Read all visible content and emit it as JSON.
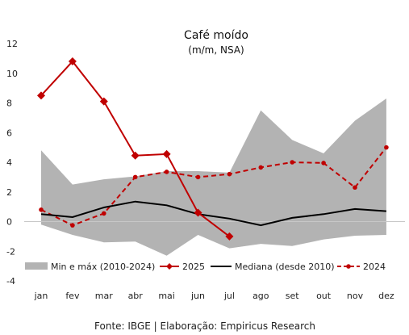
{
  "chart_data": {
    "type": "line",
    "title": "Café moído",
    "subtitle": "(m/m, NSA)",
    "categories": [
      "jan",
      "fev",
      "mar",
      "abr",
      "mai",
      "jun",
      "jul",
      "ago",
      "set",
      "out",
      "nov",
      "dez"
    ],
    "ylim": [
      -4,
      12
    ],
    "yticks": [
      -4,
      -2,
      0,
      2,
      4,
      6,
      8,
      10,
      12
    ],
    "grid": false,
    "legend_position": "bottom",
    "band": {
      "name": "Min e máx (2010-2024)",
      "color": "#b3b3b3",
      "min": [
        -0.2,
        -0.9,
        -1.4,
        -1.35,
        -2.3,
        -0.9,
        -1.8,
        -1.5,
        -1.65,
        -1.2,
        -0.95,
        -0.9
      ],
      "max": [
        4.8,
        2.5,
        2.85,
        3.05,
        3.4,
        3.4,
        3.3,
        7.5,
        5.5,
        4.6,
        6.8,
        8.3
      ]
    },
    "series": [
      {
        "name": "2025",
        "color": "#c00000",
        "style": "solid-diamond",
        "values": [
          8.5,
          10.8,
          8.1,
          4.45,
          4.55,
          0.6,
          -1.0,
          null,
          null,
          null,
          null,
          null
        ]
      },
      {
        "name": "Mediana (desde 2010)",
        "color": "#000000",
        "style": "solid",
        "values": [
          0.5,
          0.3,
          0.95,
          1.35,
          1.1,
          0.5,
          0.2,
          -0.25,
          0.25,
          0.5,
          0.85,
          0.7
        ]
      },
      {
        "name": "2024",
        "color": "#c00000",
        "style": "dashed-dot",
        "values": [
          0.8,
          -0.25,
          0.55,
          3.0,
          3.35,
          3.0,
          3.2,
          3.65,
          4.0,
          3.95,
          2.3,
          5.0
        ]
      }
    ]
  },
  "source": "Fonte: IBGE | Elaboração: Empiricus Research"
}
